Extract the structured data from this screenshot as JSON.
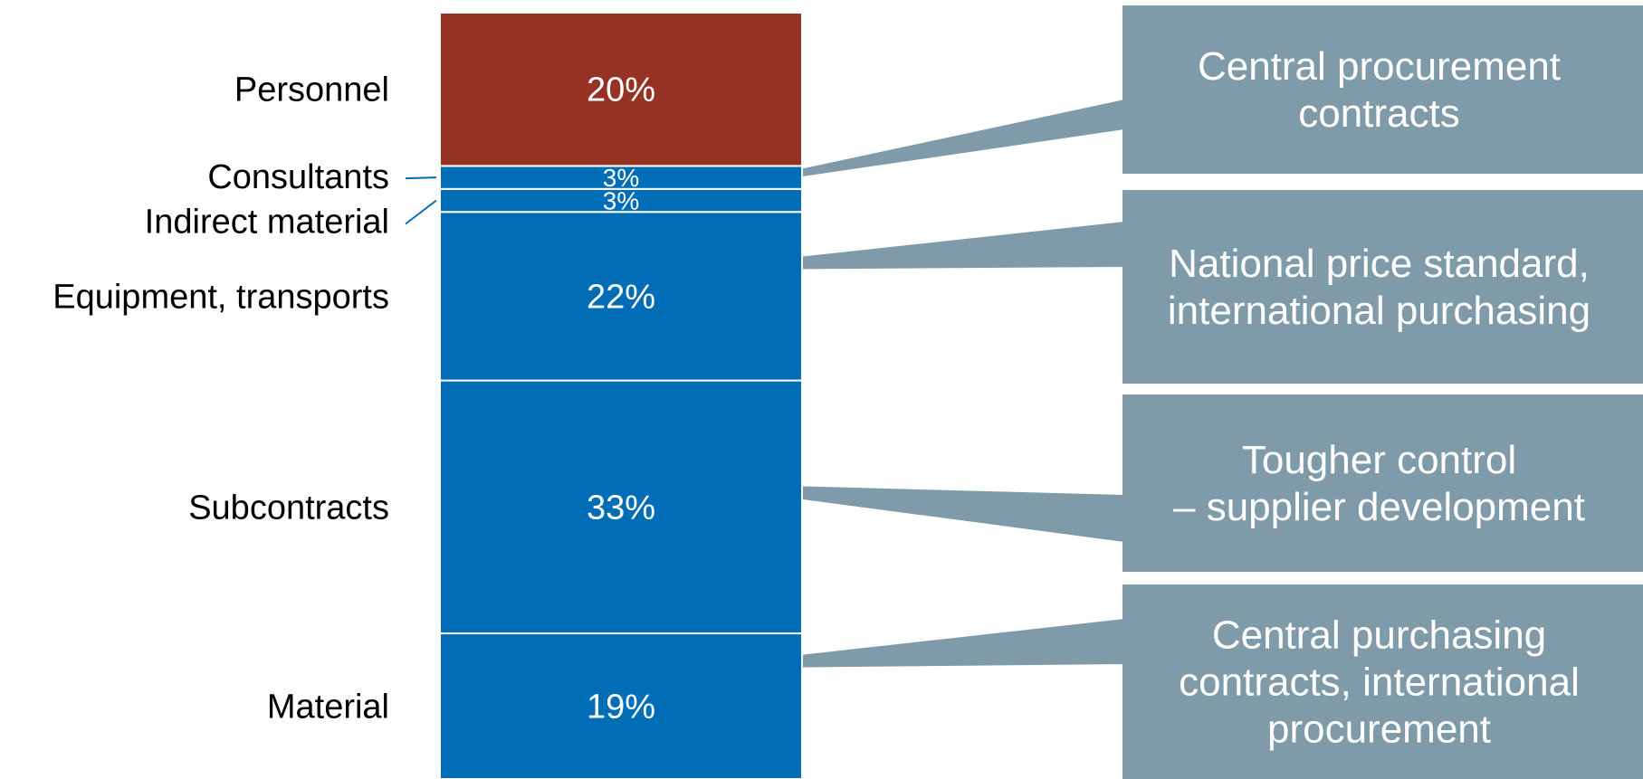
{
  "chart_data": {
    "type": "bar",
    "stacked": true,
    "orientation": "vertical",
    "categories": [
      "Material",
      "Subcontracts",
      "Equipment, transports",
      "Indirect material",
      "Consultants",
      "Personnel"
    ],
    "values": [
      19,
      33,
      22,
      3,
      3,
      20
    ],
    "value_labels": [
      "19%",
      "33%",
      "22%",
      "3%",
      "3%",
      "20%"
    ],
    "colors": [
      "#006db6",
      "#006db6",
      "#006db6",
      "#006db6",
      "#006db6",
      "#963223"
    ],
    "legend": "none",
    "grid": false,
    "annotations": [
      {
        "lines": [
          "Central procurement",
          "contracts"
        ],
        "points_to": "Indirect material"
      },
      {
        "lines": [
          "National price standard,",
          "international purchasing"
        ],
        "points_to": "Equipment, transports"
      },
      {
        "lines": [
          "Tougher control",
          "– supplier development"
        ],
        "points_to": "Subcontracts"
      },
      {
        "lines": [
          "Central purchasing",
          "contracts, international",
          "procurement"
        ],
        "points_to": "Material"
      }
    ],
    "callout_color": "#7f9aa8"
  }
}
